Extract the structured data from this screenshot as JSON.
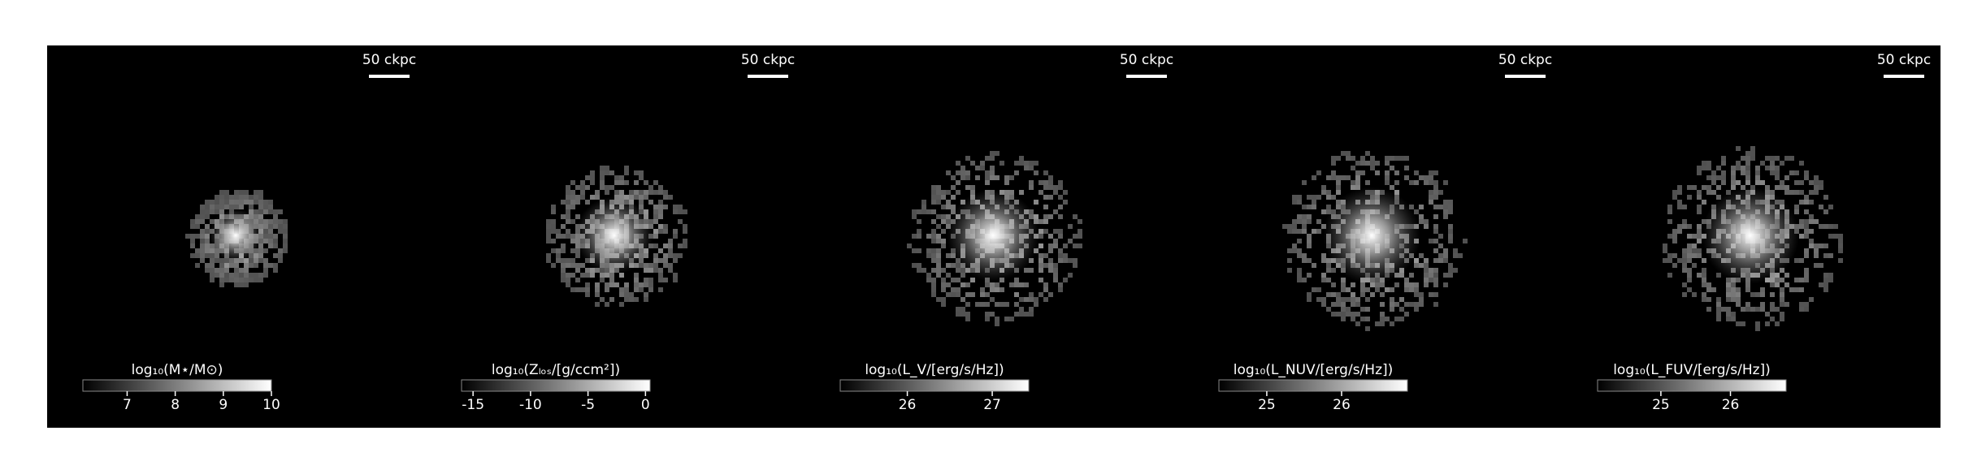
{
  "chart_data": [
    {
      "type": "image",
      "scalebar_label": "50 ckpc",
      "colorbar_label": "log₁₀(M⋆/M⊙)",
      "clim": [
        6.08,
        10
      ],
      "cticks": [
        7,
        8,
        9,
        10
      ],
      "colormap": "gray"
    },
    {
      "type": "image",
      "scalebar_label": "50 ckpc",
      "colorbar_label": "log₁₀(Zₗₒₛ/[g/ccm²])",
      "clim": [
        -16,
        0.4
      ],
      "cticks": [
        -15,
        -10,
        -5,
        0
      ],
      "colormap": "gray"
    },
    {
      "type": "image",
      "scalebar_label": "50 ckpc",
      "colorbar_label": "log₁₀(L_V/[erg/s/Hz])",
      "clim": [
        25.21,
        27.43
      ],
      "cticks": [
        26,
        27
      ],
      "colormap": "gray"
    },
    {
      "type": "image",
      "scalebar_label": "50 ckpc",
      "colorbar_label": "log₁₀(L_NUV/[erg/s/Hz])",
      "clim": [
        24.36,
        26.88
      ],
      "cticks": [
        25,
        26
      ],
      "colormap": "gray"
    },
    {
      "type": "image",
      "scalebar_label": "50 ckpc",
      "colorbar_label": "log₁₀(L_FUV/[erg/s/Hz])",
      "clim": [
        24.09,
        26.8
      ],
      "cticks": [
        25,
        26
      ],
      "colormap": "gray"
    }
  ]
}
